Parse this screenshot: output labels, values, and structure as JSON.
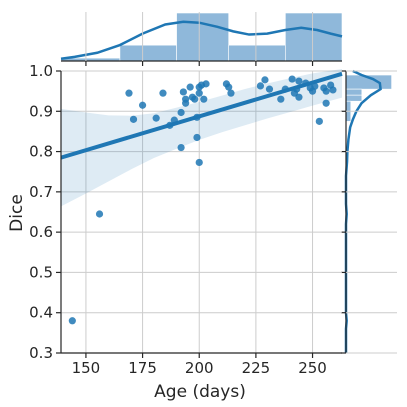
{
  "chart_data": {
    "type": "scatter",
    "subtype": "jointplot with regression line, confidence band, marginal histograms and KDE",
    "xlabel": "Age (days)",
    "ylabel": "Dice",
    "xlim": [
      139,
      263
    ],
    "ylim": [
      0.3,
      1.0
    ],
    "x_ticks": [
      150,
      175,
      200,
      225,
      250
    ],
    "y_ticks": [
      0.3,
      0.4,
      0.5,
      0.6,
      0.7,
      0.8,
      0.9,
      1.0
    ],
    "x_tick_labels": [
      "150",
      "175",
      "200",
      "225",
      "250"
    ],
    "y_tick_labels": [
      "0.3",
      "0.4",
      "0.5",
      "0.6",
      "0.7",
      "0.8",
      "0.9",
      "1.0"
    ],
    "grid": true,
    "points": [
      [
        144,
        0.38
      ],
      [
        156,
        0.645
      ],
      [
        169,
        0.945
      ],
      [
        171,
        0.88
      ],
      [
        175,
        0.915
      ],
      [
        181,
        0.883
      ],
      [
        184,
        0.945
      ],
      [
        187,
        0.865
      ],
      [
        189,
        0.878
      ],
      [
        192,
        0.897
      ],
      [
        192,
        0.81
      ],
      [
        193,
        0.948
      ],
      [
        194,
        0.93
      ],
      [
        194,
        0.92
      ],
      [
        196,
        0.96
      ],
      [
        197,
        0.935
      ],
      [
        198,
        0.93
      ],
      [
        199,
        0.835
      ],
      [
        199,
        0.885
      ],
      [
        200,
        0.96
      ],
      [
        200,
        0.773
      ],
      [
        200,
        0.945
      ],
      [
        201,
        0.965
      ],
      [
        202,
        0.93
      ],
      [
        203,
        0.968
      ],
      [
        212,
        0.968
      ],
      [
        213,
        0.96
      ],
      [
        214,
        0.945
      ],
      [
        227,
        0.963
      ],
      [
        229,
        0.978
      ],
      [
        231,
        0.955
      ],
      [
        236,
        0.93
      ],
      [
        238,
        0.955
      ],
      [
        241,
        0.98
      ],
      [
        242,
        0.945
      ],
      [
        243,
        0.955
      ],
      [
        244,
        0.935
      ],
      [
        244,
        0.975
      ],
      [
        247,
        0.97
      ],
      [
        249,
        0.958
      ],
      [
        250,
        0.95
      ],
      [
        251,
        0.962
      ],
      [
        253,
        0.875
      ],
      [
        255,
        0.958
      ],
      [
        256,
        0.92
      ],
      [
        256,
        0.95
      ],
      [
        258,
        0.965
      ],
      [
        259,
        0.953
      ]
    ],
    "regression": {
      "x": [
        139,
        263
      ],
      "y": [
        0.785,
        0.993
      ]
    },
    "confidence_band": {
      "x": [
        139,
        150,
        160,
        170,
        180,
        190,
        200,
        210,
        220,
        230,
        240,
        250,
        263
      ],
      "upper": [
        0.906,
        0.897,
        0.89,
        0.889,
        0.895,
        0.909,
        0.923,
        0.939,
        0.955,
        0.969,
        0.982,
        0.994,
        1.012
      ],
      "lower": [
        0.664,
        0.696,
        0.726,
        0.756,
        0.784,
        0.807,
        0.829,
        0.848,
        0.865,
        0.882,
        0.898,
        0.914,
        0.934
      ]
    },
    "marginal_x_histogram": {
      "bins": [
        [
          139,
          165,
          0.06
        ],
        [
          165,
          190,
          0.33
        ],
        [
          190,
          213,
          1.0
        ],
        [
          213,
          238,
          0.33
        ],
        [
          238,
          263,
          1.0
        ]
      ]
    },
    "marginal_x_kde": {
      "x": [
        139,
        145,
        155,
        165,
        175,
        185,
        193,
        200,
        208,
        215,
        222,
        230,
        238,
        245,
        252,
        258,
        263
      ],
      "density": [
        0.05,
        0.09,
        0.18,
        0.35,
        0.6,
        0.8,
        0.86,
        0.84,
        0.75,
        0.65,
        0.58,
        0.6,
        0.68,
        0.73,
        0.68,
        0.6,
        0.54
      ]
    },
    "marginal_y_histogram": {
      "bins": [
        [
          0.955,
          0.99,
          0.95
        ],
        [
          0.94,
          0.955,
          0.33
        ],
        [
          0.925,
          0.94,
          0.33
        ],
        [
          0.875,
          0.925,
          0.1
        ]
      ]
    },
    "marginal_y_kde": {
      "y": [
        0.3,
        0.36,
        0.38,
        0.4,
        0.62,
        0.645,
        0.67,
        0.74,
        0.775,
        0.8,
        0.83,
        0.86,
        0.88,
        0.9,
        0.92,
        0.94,
        0.955,
        0.97,
        0.98,
        0.99,
        1.0
      ],
      "density": [
        0.0,
        0.0,
        0.02,
        0.0,
        0.0,
        0.02,
        0.0,
        0.0,
        0.03,
        0.04,
        0.07,
        0.12,
        0.2,
        0.3,
        0.45,
        0.72,
        1.0,
        0.98,
        0.78,
        0.45,
        0.2
      ]
    },
    "colors": {
      "points": "#1f77b4",
      "line": "#1f77b4",
      "band": "#1f77b4",
      "histogram": "#8fb8da",
      "grid": "#cccccc",
      "axis": "#262626"
    }
  }
}
